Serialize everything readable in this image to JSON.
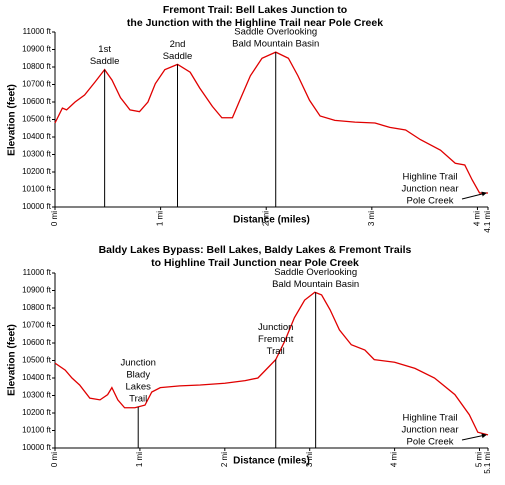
{
  "chart_data": [
    {
      "type": "line",
      "title": [
        "Fremont Trail: Bell Lakes Junction to",
        "the Junction with the Highline Trail near Pole Creek"
      ],
      "x_label": "Distance (miles)",
      "y_label": "Elevation (feet)",
      "color": "#e00000",
      "x": [
        0,
        0.07,
        0.11,
        0.19,
        0.28,
        0.38,
        0.47,
        0.54,
        0.62,
        0.71,
        0.8,
        0.88,
        0.95,
        1.04,
        1.16,
        1.28,
        1.37,
        1.49,
        1.58,
        1.68,
        1.75,
        1.85,
        1.96,
        2.09,
        2.21,
        2.3,
        2.41,
        2.51,
        2.65,
        2.84,
        3.03,
        3.17,
        3.32,
        3.46,
        3.65,
        3.79,
        3.88,
        3.95,
        4.02,
        4.1
      ],
      "values": [
        10480,
        10565,
        10555,
        10600,
        10640,
        10715,
        10785,
        10725,
        10625,
        10555,
        10545,
        10600,
        10705,
        10785,
        10815,
        10770,
        10680,
        10575,
        10510,
        10510,
        10610,
        10750,
        10850,
        10885,
        10850,
        10750,
        10610,
        10520,
        10495,
        10485,
        10480,
        10455,
        10440,
        10385,
        10325,
        10250,
        10240,
        10155,
        10080,
        10080
      ],
      "xlim": [
        0,
        4.1
      ],
      "ylim": [
        10000,
        11000
      ],
      "xticks": [
        {
          "value": 0,
          "label": "0 mi"
        },
        {
          "value": 1,
          "label": "1 mi"
        },
        {
          "value": 2,
          "label": "2 mi"
        },
        {
          "value": 3,
          "label": "3 mi"
        },
        {
          "value": 4,
          "label": "4 mi"
        },
        {
          "value": 4.1,
          "label": "4.1 mi"
        }
      ],
      "yticks": [
        {
          "value": 10000,
          "label": "10000 ft"
        },
        {
          "value": 10100,
          "label": "10100 ft"
        },
        {
          "value": 10200,
          "label": "10200 ft"
        },
        {
          "value": 10300,
          "label": "10300 ft"
        },
        {
          "value": 10400,
          "label": "10400 ft"
        },
        {
          "value": 10500,
          "label": "10500 ft"
        },
        {
          "value": 10600,
          "label": "10600 ft"
        },
        {
          "value": 10700,
          "label": "10700 ft"
        },
        {
          "value": 10800,
          "label": "10800 ft"
        },
        {
          "value": 10900,
          "label": "10900 ft"
        },
        {
          "value": 11000,
          "label": "11000 ft"
        }
      ],
      "markers": [
        {
          "lines": [
            "1st",
            "Saddle"
          ],
          "x": 0.47,
          "y": 10785
        },
        {
          "lines": [
            "2nd",
            "Saddle"
          ],
          "x": 1.16,
          "y": 10815
        },
        {
          "lines": [
            "Saddle Overlooking",
            "Bald Mountain Basin"
          ],
          "x": 2.09,
          "y": 10885
        }
      ],
      "callout": {
        "lines": [
          "Highline Trail",
          "Junction near",
          "Pole Creek"
        ],
        "x": 4.1,
        "y": 10080
      }
    },
    {
      "type": "line",
      "title": [
        "Baldy Lakes Bypass: Bell Lakes, Baldy Lakes & Fremont Trails",
        "to Highline Trail Junction near Pole Creek"
      ],
      "x_label": "Distance (miles)",
      "y_label": "Elevation (feet)",
      "color": "#e00000",
      "x": [
        0,
        0.12,
        0.2,
        0.29,
        0.41,
        0.53,
        0.62,
        0.67,
        0.74,
        0.82,
        0.94,
        1.06,
        1.14,
        1.24,
        1.47,
        1.71,
        2.0,
        2.24,
        2.39,
        2.48,
        2.6,
        2.71,
        2.82,
        2.94,
        3.06,
        3.14,
        3.24,
        3.35,
        3.49,
        3.65,
        3.76,
        4.0,
        4.24,
        4.47,
        4.71,
        4.88,
        4.98,
        5.1
      ],
      "values": [
        10485,
        10445,
        10400,
        10360,
        10285,
        10275,
        10305,
        10345,
        10275,
        10230,
        10230,
        10245,
        10320,
        10345,
        10355,
        10360,
        10370,
        10385,
        10400,
        10445,
        10505,
        10615,
        10745,
        10845,
        10890,
        10875,
        10790,
        10675,
        10590,
        10560,
        10505,
        10490,
        10455,
        10400,
        10305,
        10190,
        10090,
        10075
      ],
      "xlim": [
        0,
        5.1
      ],
      "ylim": [
        10000,
        11000
      ],
      "xticks": [
        {
          "value": 0,
          "label": "0 mi"
        },
        {
          "value": 1,
          "label": "1 mi"
        },
        {
          "value": 2,
          "label": "2 mi"
        },
        {
          "value": 3,
          "label": "3 mi"
        },
        {
          "value": 4,
          "label": "4 mi"
        },
        {
          "value": 5,
          "label": "5 mi"
        },
        {
          "value": 5.1,
          "label": "5.1 mi"
        }
      ],
      "yticks": [
        {
          "value": 10000,
          "label": "10000 ft"
        },
        {
          "value": 10100,
          "label": "10100 ft"
        },
        {
          "value": 10200,
          "label": "10200 ft"
        },
        {
          "value": 10300,
          "label": "10300 ft"
        },
        {
          "value": 10400,
          "label": "10400 ft"
        },
        {
          "value": 10500,
          "label": "10500 ft"
        },
        {
          "value": 10600,
          "label": "10600 ft"
        },
        {
          "value": 10700,
          "label": "10700 ft"
        },
        {
          "value": 10800,
          "label": "10800 ft"
        },
        {
          "value": 10900,
          "label": "10900 ft"
        },
        {
          "value": 11000,
          "label": "11000 ft"
        }
      ],
      "markers": [
        {
          "lines": [
            "Junction",
            "Blady",
            "Lakes",
            "Trail"
          ],
          "x": 0.98,
          "y": 10235
        },
        {
          "lines": [
            "Junction",
            "Fremont",
            "Trail"
          ],
          "x": 2.6,
          "y": 10505
        },
        {
          "lines": [
            "Saddle Overlooking",
            "Bald Mountain Basin"
          ],
          "x": 3.07,
          "y": 10890
        }
      ],
      "callout": {
        "lines": [
          "Highline Trail",
          "Junction near",
          "Pole Creek"
        ],
        "x": 5.1,
        "y": 10075
      }
    }
  ]
}
